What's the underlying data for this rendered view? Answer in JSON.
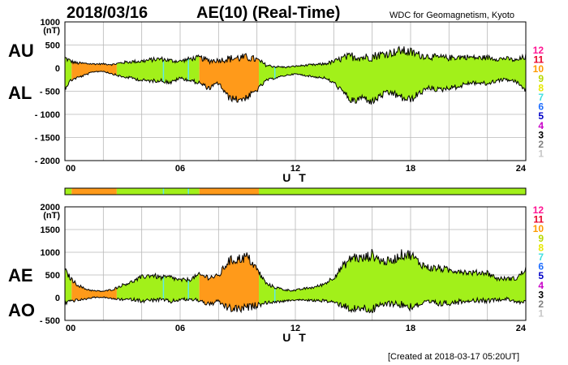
{
  "header": {
    "date": "2018/03/16",
    "title": "AE(10) (Real-Time)",
    "source": "WDC for Geomagnetism, Kyoto"
  },
  "footer": {
    "created": "[Created at 2018-03-17 05:20UT]"
  },
  "station_legend": [
    {
      "label": "12",
      "color": "#ff1493"
    },
    {
      "label": "11",
      "color": "#e8002a"
    },
    {
      "label": "10",
      "color": "#ff9a00"
    },
    {
      "label": "9",
      "color": "#b8d800"
    },
    {
      "label": "8",
      "color": "#e8e800"
    },
    {
      "label": "7",
      "color": "#40e0e0"
    },
    {
      "label": "6",
      "color": "#1e6eff"
    },
    {
      "label": "5",
      "color": "#0000c8"
    },
    {
      "label": "4",
      "color": "#c800c8"
    },
    {
      "label": "3",
      "color": "#000000"
    },
    {
      "label": "2",
      "color": "#808080"
    },
    {
      "label": "1",
      "color": "#c8c8c8"
    }
  ],
  "colors": {
    "ten_stations": "#ff9a1a",
    "nine_stations": "#a2f01a",
    "seven_stations": "#60e8e8"
  },
  "station_count_bar": {
    "segments": [
      {
        "start": 0.0,
        "end": 0.35,
        "count": "9"
      },
      {
        "start": 0.35,
        "end": 2.7,
        "count": "10"
      },
      {
        "start": 2.7,
        "end": 7.0,
        "count": "9"
      },
      {
        "start": 7.0,
        "end": 10.1,
        "count": "10"
      },
      {
        "start": 10.1,
        "end": 24.0,
        "count": "9"
      }
    ]
  },
  "chart_data": [
    {
      "type": "area",
      "series": [
        {
          "name": "AU"
        },
        {
          "name": "AL"
        }
      ],
      "side_labels": [
        "AU",
        "AL"
      ],
      "unit": "(nT)",
      "xlabel": "U T",
      "xlim": [
        0,
        24
      ],
      "ylim": [
        -2000,
        1000
      ],
      "yticks": [
        1000,
        500,
        0,
        -500,
        -1000,
        -1500,
        -2000
      ],
      "ytick_labels": [
        "1000",
        "500",
        "0",
        "- 500",
        "- 1000",
        "- 1500",
        "- 2000"
      ],
      "xticks": [
        0,
        6,
        12,
        18,
        24
      ],
      "xtick_labels": [
        "00",
        "06",
        "12",
        "18",
        "24"
      ],
      "grid": true,
      "x": [
        0,
        0.3,
        0.6,
        1,
        1.5,
        2,
        2.5,
        3,
        3.5,
        4,
        4.5,
        5,
        5.5,
        6,
        6.5,
        7,
        7.5,
        8,
        8.5,
        9,
        9.5,
        10,
        10.5,
        11,
        11.5,
        12,
        12.5,
        13,
        13.5,
        14,
        14.5,
        15,
        15.5,
        16,
        16.5,
        17,
        17.5,
        18,
        18.5,
        19,
        19.5,
        20,
        20.5,
        21,
        21.5,
        22,
        22.5,
        23,
        23.5,
        24
      ],
      "upper": [
        220,
        150,
        110,
        100,
        90,
        90,
        80,
        120,
        140,
        150,
        180,
        200,
        160,
        150,
        200,
        230,
        160,
        170,
        200,
        220,
        230,
        180,
        60,
        30,
        20,
        40,
        60,
        70,
        90,
        140,
        220,
        260,
        230,
        250,
        300,
        330,
        380,
        340,
        280,
        250,
        230,
        220,
        240,
        240,
        220,
        230,
        200,
        210,
        160,
        250
      ],
      "lower": [
        -400,
        -250,
        -200,
        -150,
        -70,
        -60,
        -120,
        -180,
        -200,
        -250,
        -260,
        -250,
        -300,
        -200,
        -250,
        -300,
        -420,
        -300,
        -600,
        -650,
        -600,
        -450,
        -250,
        -200,
        -150,
        -120,
        -150,
        -180,
        -200,
        -300,
        -500,
        -700,
        -600,
        -700,
        -550,
        -500,
        -600,
        -650,
        -500,
        -400,
        -450,
        -400,
        -380,
        -300,
        -300,
        -320,
        -250,
        -230,
        -280,
        -450
      ],
      "segments": [
        {
          "start": 0.0,
          "end": 0.35,
          "count": "9"
        },
        {
          "start": 0.35,
          "end": 2.7,
          "count": "10"
        },
        {
          "start": 2.7,
          "end": 7.0,
          "count": "9"
        },
        {
          "start": 7.0,
          "end": 10.1,
          "count": "10"
        },
        {
          "start": 10.1,
          "end": 24.0,
          "count": "9"
        }
      ]
    },
    {
      "type": "area",
      "series": [
        {
          "name": "AE"
        },
        {
          "name": "AO"
        }
      ],
      "side_labels": [
        "AE",
        "AO"
      ],
      "unit": "(nT)",
      "xlabel": "U T",
      "xlim": [
        0,
        24
      ],
      "ylim": [
        -500,
        2000
      ],
      "yticks": [
        2000,
        1500,
        1000,
        500,
        0,
        -500
      ],
      "ytick_labels": [
        "2000",
        "1500",
        "1000",
        "500",
        "0",
        "- 500"
      ],
      "xticks": [
        0,
        6,
        12,
        18,
        24
      ],
      "xtick_labels": [
        "00",
        "06",
        "12",
        "18",
        "24"
      ],
      "grid": true,
      "x": [
        0,
        0.3,
        0.6,
        1,
        1.5,
        2,
        2.5,
        3,
        3.5,
        4,
        4.5,
        5,
        5.5,
        6,
        6.5,
        7,
        7.5,
        8,
        8.5,
        9,
        9.5,
        10,
        10.5,
        11,
        11.5,
        12,
        12.5,
        13,
        13.5,
        14,
        14.5,
        15,
        15.5,
        16,
        16.5,
        17,
        17.5,
        18,
        18.5,
        19,
        19.5,
        20,
        20.5,
        21,
        21.5,
        22,
        22.5,
        23,
        23.5,
        24
      ],
      "upper": [
        600,
        420,
        300,
        200,
        150,
        140,
        180,
        280,
        350,
        450,
        500,
        440,
        450,
        380,
        400,
        500,
        450,
        470,
        800,
        850,
        900,
        620,
        300,
        220,
        170,
        160,
        200,
        230,
        300,
        450,
        700,
        900,
        850,
        950,
        800,
        800,
        950,
        950,
        750,
        650,
        650,
        600,
        600,
        550,
        550,
        550,
        420,
        420,
        420,
        620
      ],
      "lower": [
        -100,
        -50,
        -45,
        -30,
        10,
        15,
        -20,
        -30,
        -25,
        -50,
        -40,
        -25,
        -70,
        -25,
        -25,
        -35,
        -130,
        -65,
        -200,
        -215,
        -185,
        -135,
        -95,
        -85,
        -65,
        -40,
        -45,
        -55,
        -55,
        -80,
        -140,
        -220,
        -185,
        -225,
        -125,
        -85,
        -110,
        -155,
        -110,
        -75,
        -110,
        -90,
        -70,
        -30,
        -40,
        -45,
        -25,
        -10,
        -60,
        -100
      ]
    }
  ]
}
